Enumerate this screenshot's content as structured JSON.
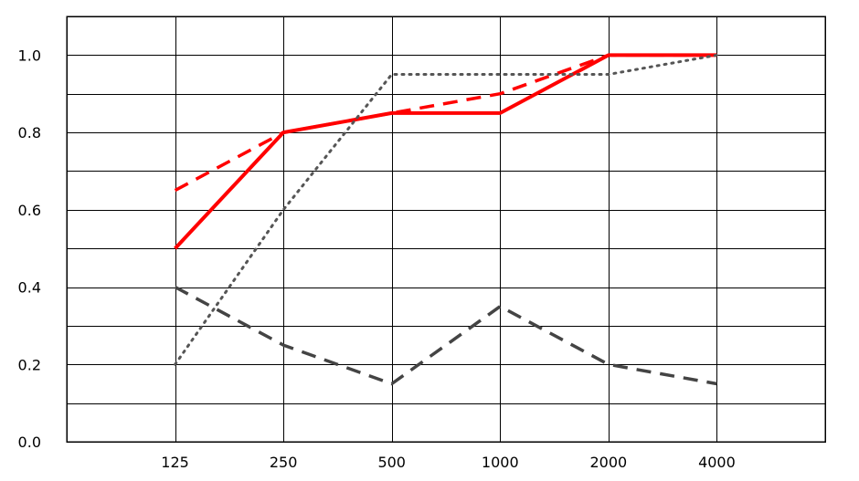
{
  "chart_data": {
    "type": "line",
    "title": "",
    "xlabel": "",
    "ylabel": "",
    "categories": [
      "125",
      "250",
      "500",
      "1000",
      "2000",
      "4000"
    ],
    "ylim": [
      0,
      1.1
    ],
    "yticks": [
      "0.0",
      "0.2",
      "0.4",
      "0.6",
      "0.8",
      "1.0"
    ],
    "grid": true,
    "legend": "none",
    "series": [
      {
        "values": [
          0.5,
          0.8,
          0.85,
          0.85,
          1.0,
          1.0
        ],
        "color": "#ff0000",
        "style": "solid"
      },
      {
        "values": [
          0.65,
          0.8,
          0.85,
          0.9,
          1.0,
          1.0
        ],
        "color": "#ff0000",
        "style": "dashed"
      },
      {
        "values": [
          0.2,
          0.6,
          0.95,
          0.95,
          0.95,
          1.0
        ],
        "color": "#555555",
        "style": "dotted"
      },
      {
        "values": [
          0.4,
          0.25,
          0.15,
          0.35,
          0.2,
          0.15
        ],
        "color": "#444444",
        "style": "dashed"
      }
    ]
  }
}
